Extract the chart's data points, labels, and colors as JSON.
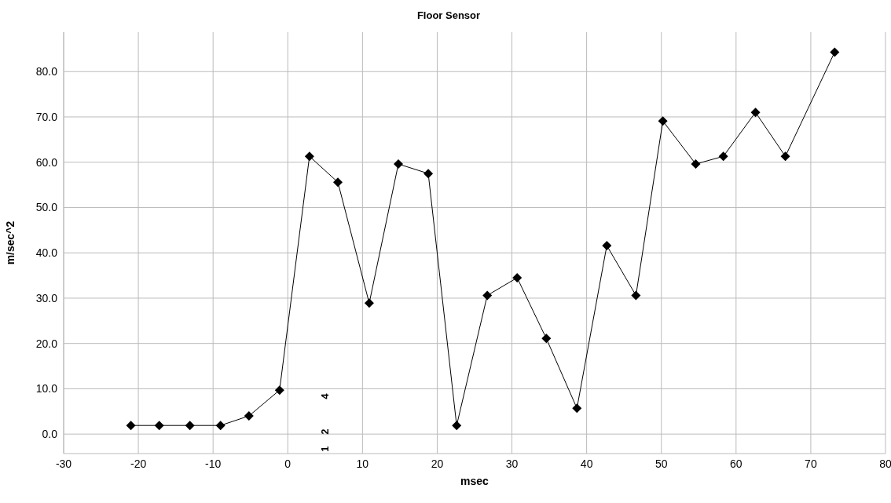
{
  "chart_data": {
    "type": "line",
    "title": "Floor Sensor",
    "xlabel": "msec",
    "ylabel": "m/sec^2",
    "x": [
      -21.0,
      -17.2,
      -13.1,
      -9.0,
      -5.2,
      -1.1,
      2.9,
      6.7,
      10.9,
      14.8,
      18.8,
      22.6,
      26.7,
      30.7,
      34.6,
      38.7,
      42.7,
      46.6,
      50.2,
      54.6,
      58.3,
      62.6,
      66.6,
      73.2
    ],
    "series": [
      {
        "color": "#000000",
        "values": [
          1.9,
          1.9,
          1.9,
          1.9,
          4.0,
          9.7,
          61.3,
          55.6,
          28.9,
          59.6,
          57.5,
          1.9,
          30.6,
          34.5,
          21.1,
          5.7,
          41.6,
          30.6,
          69.1,
          59.6,
          61.3,
          71.0,
          61.3,
          84.3
        ]
      }
    ],
    "xlim": [
      -30,
      80
    ],
    "xticks": [
      -30,
      -20,
      -10,
      0,
      10,
      20,
      30,
      40,
      50,
      60,
      70,
      80
    ],
    "ylim": [
      -4.3,
      88.7
    ],
    "yticks": [
      {
        "value": 0,
        "label": "0.0"
      },
      {
        "value": 10,
        "label": "10.0"
      },
      {
        "value": 20,
        "label": "20.0"
      },
      {
        "value": 30,
        "label": "30.0"
      },
      {
        "value": 40,
        "label": "40.0"
      },
      {
        "value": 50,
        "label": "50.0"
      },
      {
        "value": 60,
        "label": "60.0"
      },
      {
        "value": 70,
        "label": "70.0"
      },
      {
        "value": 80,
        "label": "80.0"
      }
    ],
    "annotations": [
      "1",
      "2",
      "4"
    ],
    "grid": true,
    "marker": "diamond",
    "line_style": "solid"
  }
}
